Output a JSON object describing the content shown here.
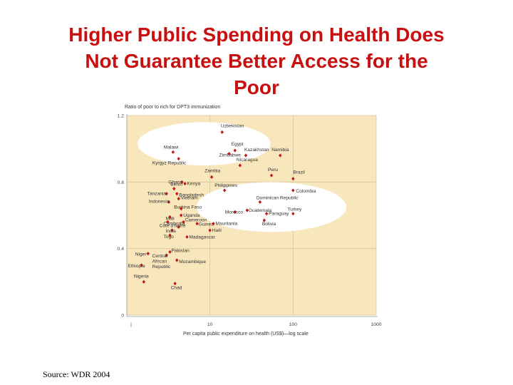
{
  "title": {
    "lines": [
      "Higher Public Spending on Health Does",
      "Not Guarantee Better Access for the",
      "Poor"
    ]
  },
  "source": "Source:  WDR 2004",
  "colors": {
    "title": "#c81010",
    "plot_bg": "#f8e6bd",
    "ellipse": "#ffffff",
    "marker": "#c01818"
  },
  "chart_data": {
    "type": "scatter",
    "title": "",
    "xlabel": "Per capita public expenditure on health (US$)—log scale",
    "ylabel": "Ratio of poor to rich for DPT3 immunization",
    "xscale": "log",
    "xlim": [
      1,
      1000
    ],
    "ylim": [
      0,
      1.2
    ],
    "xticks": [
      {
        "value": 10,
        "label": "10"
      },
      {
        "value": 100,
        "label": "100"
      },
      {
        "value": 1000,
        "label": "1000"
      }
    ],
    "yticks": [
      {
        "value": 0,
        "label": "0"
      },
      {
        "value": 0.4,
        "label": "0.4"
      },
      {
        "value": 0.8,
        "label": "0.8"
      },
      {
        "value": 1.2,
        "label": "1.2"
      }
    ],
    "highlights": [
      {
        "cx": 8.5,
        "cy": 1.03,
        "rx_dec": 0.8,
        "ry": 0.13
      },
      {
        "cx": 55,
        "cy": 0.65,
        "rx_dec": 0.9,
        "ry": 0.15
      }
    ],
    "points": [
      {
        "name": "Uzbekistan",
        "x": 14,
        "y": 1.1,
        "anchor": "start",
        "dx": -2,
        "dy": -7
      },
      {
        "name": "Egypt",
        "x": 20,
        "y": 0.99,
        "anchor": "start",
        "dx": -5,
        "dy": -7
      },
      {
        "name": "Malawi",
        "x": 3.6,
        "y": 0.98,
        "anchor": "start",
        "dx": -13,
        "dy": -5
      },
      {
        "name": "Zimbabwe",
        "x": 17,
        "y": 0.97,
        "anchor": "start",
        "dx": -14,
        "dy": 4
      },
      {
        "name": "Kazakhstan",
        "x": 27,
        "y": 0.96,
        "anchor": "start",
        "dx": -2,
        "dy": -6
      },
      {
        "name": "Namibia",
        "x": 70,
        "y": 0.96,
        "anchor": "start",
        "dx": -12,
        "dy": -6
      },
      {
        "name": "Kyrgyz Republic",
        "x": 4.2,
        "y": 0.94,
        "anchor": "start",
        "dx": -37,
        "dy": 8
      },
      {
        "name": "Nicaragua",
        "x": 23,
        "y": 0.9,
        "anchor": "start",
        "dx": -5,
        "dy": -6
      },
      {
        "name": "Zambia",
        "x": 10.5,
        "y": 0.83,
        "anchor": "start",
        "dx": -10,
        "dy": -7
      },
      {
        "name": "Peru",
        "x": 55,
        "y": 0.84,
        "anchor": "start",
        "dx": -5,
        "dy": -6
      },
      {
        "name": "Brazil",
        "x": 100,
        "y": 0.82,
        "anchor": "start",
        "dx": 0,
        "dy": -7
      },
      {
        "name": "Ghana",
        "x": 4.6,
        "y": 0.8,
        "anchor": "start",
        "dx": -19,
        "dy": 2
      },
      {
        "name": "Kenya",
        "x": 5.0,
        "y": 0.79,
        "anchor": "start",
        "dx": 3,
        "dy": 2
      },
      {
        "name": "Benin",
        "x": 3.7,
        "y": 0.76,
        "anchor": "start",
        "dx": -5,
        "dy": -4
      },
      {
        "name": "Philippines",
        "x": 15,
        "y": 0.75,
        "anchor": "start",
        "dx": -14,
        "dy": -5
      },
      {
        "name": "Colombia",
        "x": 100,
        "y": 0.75,
        "anchor": "start",
        "dx": 4,
        "dy": 3
      },
      {
        "name": "Tanzania",
        "x": 3.0,
        "y": 0.73,
        "anchor": "start",
        "dx": -27,
        "dy": 2
      },
      {
        "name": "Bangladesh",
        "x": 4.0,
        "y": 0.73,
        "anchor": "start",
        "dx": 3,
        "dy": 4
      },
      {
        "name": "Vietnam",
        "x": 4.2,
        "y": 0.7,
        "anchor": "start",
        "dx": 3,
        "dy": 1
      },
      {
        "name": "Dominican Republic",
        "x": 40,
        "y": 0.68,
        "anchor": "start",
        "dx": -5,
        "dy": -4
      },
      {
        "name": "Indonesia",
        "x": 3.2,
        "y": 0.68,
        "anchor": "start",
        "dx": -28,
        "dy": 1
      },
      {
        "name": "Burkina Faso",
        "x": 4.5,
        "y": 0.64,
        "anchor": "start",
        "dx": -10,
        "dy": 0
      },
      {
        "name": "Guatemala",
        "x": 28,
        "y": 0.63,
        "anchor": "start",
        "dx": 2,
        "dy": 2
      },
      {
        "name": "Morocco",
        "x": 20,
        "y": 0.62,
        "anchor": "start",
        "dx": -14,
        "dy": 2
      },
      {
        "name": "Paraguay",
        "x": 48,
        "y": 0.61,
        "anchor": "start",
        "dx": 3,
        "dy": 2
      },
      {
        "name": "Turkey",
        "x": 100,
        "y": 0.61,
        "anchor": "start",
        "dx": -8,
        "dy": -4
      },
      {
        "name": "Uganda",
        "x": 4.5,
        "y": 0.6,
        "anchor": "start",
        "dx": 3,
        "dy": 2
      },
      {
        "name": "Mali",
        "x": 3.3,
        "y": 0.59,
        "anchor": "start",
        "dx": -6,
        "dy": 4
      },
      {
        "name": "Bolivia",
        "x": 45,
        "y": 0.57,
        "anchor": "start",
        "dx": -3,
        "dy": 7
      },
      {
        "name": "Cambodia",
        "x": 3.1,
        "y": 0.56,
        "anchor": "start",
        "dx": -6,
        "dy": 4
      },
      {
        "name": "Cameroon",
        "x": 4.8,
        "y": 0.56,
        "anchor": "start",
        "dx": 2,
        "dy": -1
      },
      {
        "name": "Guinea",
        "x": 7.0,
        "y": 0.55,
        "anchor": "start",
        "dx": 2,
        "dy": 3
      },
      {
        "name": "Mauritania",
        "x": 11,
        "y": 0.55,
        "anchor": "start",
        "dx": 3,
        "dy": 2
      },
      {
        "name": "Cote d'Ivoire",
        "x": 4.2,
        "y": 0.53,
        "anchor": "start",
        "dx": -27,
        "dy": 0
      },
      {
        "name": "India",
        "x": 3.5,
        "y": 0.51,
        "anchor": "start",
        "dx": -9,
        "dy": 3
      },
      {
        "name": "Haiti",
        "x": 10,
        "y": 0.51,
        "anchor": "start",
        "dx": 3,
        "dy": 2
      },
      {
        "name": "Togo",
        "x": 3.3,
        "y": 0.48,
        "anchor": "start",
        "dx": -9,
        "dy": 4
      },
      {
        "name": "Madagascar",
        "x": 5.3,
        "y": 0.47,
        "anchor": "start",
        "dx": 3,
        "dy": 2
      },
      {
        "name": "Niger",
        "x": 1.8,
        "y": 0.37,
        "anchor": "start",
        "dx": -18,
        "dy": 3
      },
      {
        "name": "Pakistan",
        "x": 3.3,
        "y": 0.38,
        "anchor": "start",
        "dx": 2,
        "dy": 0
      },
      {
        "name": "Central African Republic",
        "x": 3.0,
        "y": 0.36,
        "anchor": "start",
        "dx": -20,
        "dy": 3,
        "lines": [
          "Central",
          "African",
          "Republic"
        ]
      },
      {
        "name": "Mozambique",
        "x": 4.0,
        "y": 0.33,
        "anchor": "start",
        "dx": 3,
        "dy": 4
      },
      {
        "name": "Ethiopia",
        "x": 1.5,
        "y": 0.3,
        "anchor": "start",
        "dx": -19,
        "dy": 3
      },
      {
        "name": "Nigeria",
        "x": 1.6,
        "y": 0.2,
        "anchor": "start",
        "dx": -14,
        "dy": -6
      },
      {
        "name": "Chad",
        "x": 3.8,
        "y": 0.19,
        "anchor": "start",
        "dx": -6,
        "dy": 8
      }
    ]
  }
}
